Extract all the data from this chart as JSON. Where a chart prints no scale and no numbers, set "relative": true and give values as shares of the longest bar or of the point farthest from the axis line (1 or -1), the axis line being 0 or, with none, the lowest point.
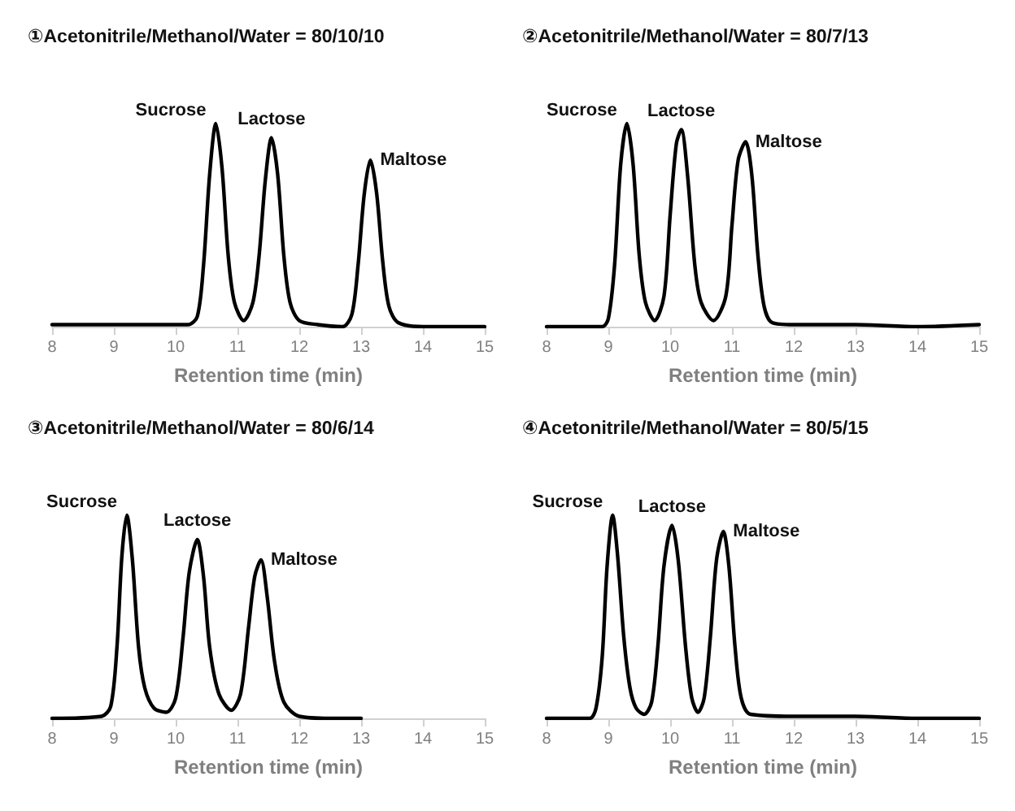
{
  "chart_data": [
    {
      "type": "line",
      "title": "①Acetonitrile/Methanol/Water = 80/10/10",
      "xlabel": "Retention time (min)",
      "relative": true,
      "color": "#000000",
      "xlim": [
        8,
        15
      ],
      "xticks": [
        8,
        9,
        10,
        11,
        12,
        13,
        14,
        15
      ],
      "x": [
        8,
        9,
        10,
        10.2,
        10.35,
        10.45,
        10.55,
        10.65,
        10.75,
        10.85,
        10.95,
        11.1,
        11.25,
        11.35,
        11.45,
        11.55,
        11.65,
        11.75,
        11.85,
        12,
        12.3,
        12.7,
        12.85,
        12.95,
        13.05,
        13.15,
        13.25,
        13.35,
        13.45,
        13.6,
        14,
        15
      ],
      "values": [
        0.01,
        0.01,
        0.01,
        0.01,
        0.05,
        0.3,
        0.75,
        1,
        0.78,
        0.35,
        0.12,
        0.03,
        0.12,
        0.35,
        0.72,
        0.93,
        0.75,
        0.35,
        0.12,
        0.03,
        0.01,
        0,
        0.06,
        0.3,
        0.65,
        0.82,
        0.66,
        0.32,
        0.1,
        0.02,
        0,
        0
      ],
      "annotations": [
        {
          "text": "Sucrose",
          "x": 10.65,
          "y": 1
        },
        {
          "text": "Lactose",
          "x": 11.55,
          "y": 0.93
        },
        {
          "text": "Maltose",
          "x": 13.15,
          "y": 0.82
        }
      ]
    },
    {
      "type": "line",
      "title": "②Acetonitrile/Methanol/Water = 80/7/13",
      "xlabel": "Retention time (min)",
      "relative": true,
      "color": "#000000",
      "xlim": [
        8,
        15
      ],
      "xticks": [
        8,
        9,
        10,
        11,
        12,
        13,
        14,
        15
      ],
      "x": [
        8,
        8.9,
        9.0,
        9.1,
        9.2,
        9.3,
        9.4,
        9.5,
        9.6,
        9.75,
        9.9,
        10.0,
        10.1,
        10.18,
        10.28,
        10.4,
        10.5,
        10.7,
        10.9,
        11.0,
        11.1,
        11.22,
        11.32,
        11.42,
        11.52,
        11.65,
        12,
        13,
        14,
        15
      ],
      "values": [
        0,
        0,
        0.04,
        0.3,
        0.8,
        1,
        0.8,
        0.35,
        0.12,
        0.03,
        0.15,
        0.55,
        0.9,
        0.97,
        0.75,
        0.3,
        0.12,
        0.03,
        0.15,
        0.5,
        0.82,
        0.91,
        0.75,
        0.35,
        0.1,
        0.02,
        0.01,
        0.01,
        0,
        0.01
      ],
      "annotations": [
        {
          "text": "Sucrose",
          "x": 9.3,
          "y": 1
        },
        {
          "text": "Lactose",
          "x": 10.18,
          "y": 0.97
        },
        {
          "text": "Maltose",
          "x": 11.22,
          "y": 0.91
        }
      ]
    },
    {
      "type": "line",
      "title": "③Acetonitrile/Methanol/Water = 80/6/14",
      "xlabel": "Retention time (min)",
      "relative": true,
      "color": "#000000",
      "xlim": [
        8,
        15
      ],
      "xticks": [
        8,
        9,
        10,
        11,
        12,
        13,
        14,
        15
      ],
      "x": [
        8,
        8.8,
        8.95,
        9.05,
        9.13,
        9.21,
        9.3,
        9.4,
        9.5,
        9.65,
        9.85,
        10.0,
        10.12,
        10.22,
        10.35,
        10.45,
        10.55,
        10.7,
        10.9,
        11.05,
        11.18,
        11.28,
        11.38,
        11.48,
        11.6,
        11.75,
        12,
        12.5,
        13
      ],
      "values": [
        0,
        0.01,
        0.06,
        0.35,
        0.8,
        1,
        0.78,
        0.35,
        0.15,
        0.05,
        0.03,
        0.1,
        0.4,
        0.72,
        0.88,
        0.7,
        0.35,
        0.12,
        0.04,
        0.12,
        0.45,
        0.7,
        0.78,
        0.6,
        0.28,
        0.08,
        0.01,
        0,
        0
      ],
      "annotations": [
        {
          "text": "Sucrose",
          "x": 9.21,
          "y": 1
        },
        {
          "text": "Lactose",
          "x": 10.35,
          "y": 0.88
        },
        {
          "text": "Maltose",
          "x": 11.38,
          "y": 0.78
        }
      ]
    },
    {
      "type": "line",
      "title": "④Acetonitrile/Methanol/Water = 80/5/15",
      "xlabel": "Retention time (min)",
      "relative": true,
      "color": "#000000",
      "xlim": [
        8,
        15
      ],
      "xticks": [
        8,
        9,
        10,
        11,
        12,
        13,
        14,
        15
      ],
      "x": [
        8,
        8.7,
        8.8,
        8.9,
        8.98,
        9.07,
        9.15,
        9.25,
        9.35,
        9.45,
        9.58,
        9.7,
        9.8,
        9.9,
        10.03,
        10.13,
        10.25,
        10.35,
        10.45,
        10.55,
        10.65,
        10.75,
        10.86,
        10.95,
        11.05,
        11.15,
        11.3,
        12,
        13,
        14,
        15
      ],
      "values": [
        0,
        0,
        0.05,
        0.3,
        0.75,
        1,
        0.8,
        0.4,
        0.15,
        0.05,
        0.02,
        0.08,
        0.35,
        0.75,
        0.95,
        0.78,
        0.35,
        0.1,
        0.03,
        0.1,
        0.4,
        0.78,
        0.92,
        0.75,
        0.35,
        0.1,
        0.02,
        0.01,
        0.01,
        0,
        0
      ],
      "annotations": [
        {
          "text": "Sucrose",
          "x": 9.07,
          "y": 1
        },
        {
          "text": "Lactose",
          "x": 10.03,
          "y": 0.95
        },
        {
          "text": "Maltose",
          "x": 10.86,
          "y": 0.92
        }
      ]
    }
  ]
}
